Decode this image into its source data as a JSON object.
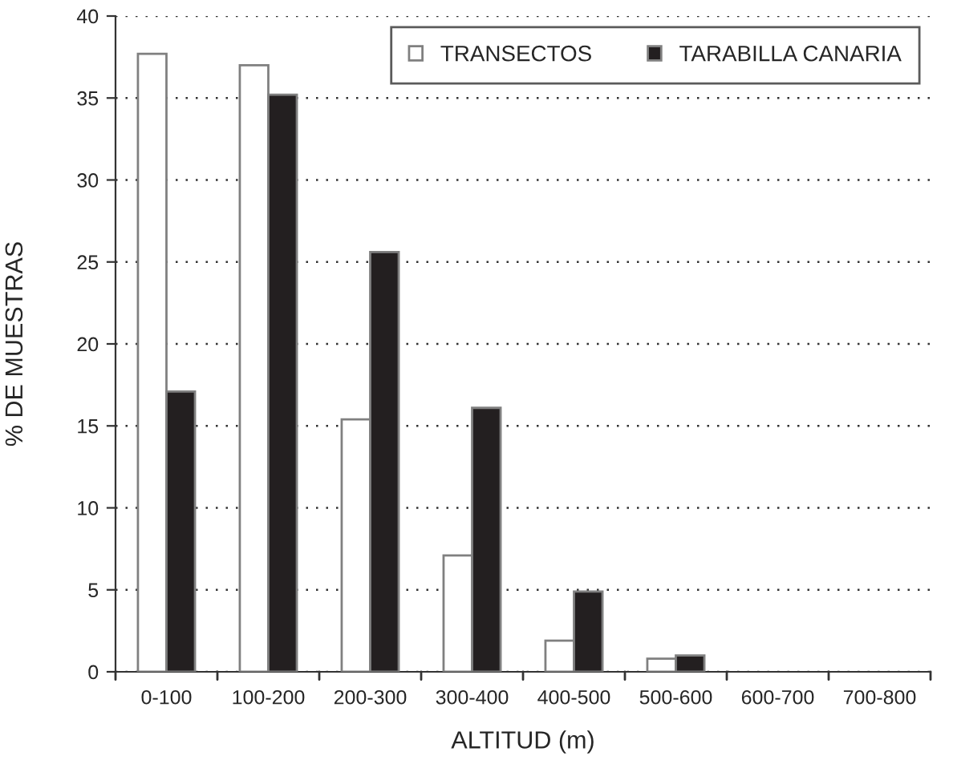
{
  "chart_data": {
    "type": "bar",
    "xlabel": "ALTITUD (m)",
    "ylabel": "% DE MUESTRAS",
    "categories": [
      "0-100",
      "100-200",
      "200-300",
      "300-400",
      "400-500",
      "500-600",
      "600-700",
      "700-800"
    ],
    "series": [
      {
        "name": "TRANSECTOS",
        "color": "#ffffff",
        "values": [
          37.7,
          37.0,
          15.4,
          7.1,
          1.9,
          0.8,
          0,
          0
        ]
      },
      {
        "name": "TARABILLA CANARIA",
        "color": "#231f20",
        "values": [
          17.1,
          35.2,
          25.6,
          16.1,
          4.9,
          1.0,
          0,
          0
        ]
      }
    ],
    "ylim": [
      0,
      40
    ],
    "yticks": [
      0,
      5,
      10,
      15,
      20,
      25,
      30,
      35,
      40
    ],
    "grid": "y",
    "legend": "top right"
  }
}
